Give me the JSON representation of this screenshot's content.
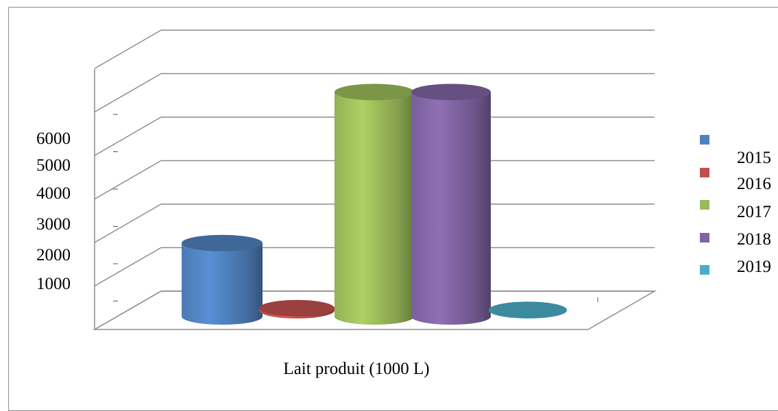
{
  "chart_data": {
    "type": "bar",
    "title": "",
    "xlabel": "Lait produit (1000 L)",
    "ylabel": "",
    "ylim": [
      0,
      6000
    ],
    "y_ticks": [
      "1000",
      "2000",
      "3000",
      "4000",
      "5000",
      "6000"
    ],
    "grid": true,
    "legend_position": "right",
    "series": [
      {
        "name": "2015",
        "value": 1700,
        "color": "#4f81bd"
      },
      {
        "name": "2016",
        "value": 50,
        "color": "#c0504d"
      },
      {
        "name": "2017",
        "value": 5200,
        "color": "#9bbb59"
      },
      {
        "name": "2018",
        "value": 5200,
        "color": "#8064a2"
      },
      {
        "name": "2019",
        "value": 10,
        "color": "#4bacc6"
      }
    ]
  }
}
